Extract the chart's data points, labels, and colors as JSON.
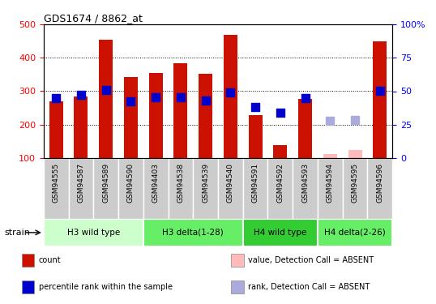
{
  "title": "GDS1674 / 8862_at",
  "samples": [
    "GSM94555",
    "GSM94587",
    "GSM94589",
    "GSM94590",
    "GSM94403",
    "GSM94538",
    "GSM94539",
    "GSM94540",
    "GSM94591",
    "GSM94592",
    "GSM94593",
    "GSM94594",
    "GSM94595",
    "GSM94596"
  ],
  "bar_values": [
    270,
    285,
    455,
    343,
    355,
    383,
    352,
    468,
    228,
    140,
    278,
    null,
    null,
    448
  ],
  "bar_absent": [
    null,
    null,
    null,
    null,
    null,
    null,
    null,
    null,
    null,
    null,
    null,
    112,
    125,
    null
  ],
  "rank_values": [
    280,
    288,
    303,
    270,
    283,
    282,
    271,
    297,
    252,
    235,
    280,
    null,
    null,
    300
  ],
  "rank_absent": [
    null,
    null,
    null,
    null,
    null,
    null,
    null,
    null,
    null,
    null,
    null,
    212,
    213,
    null
  ],
  "ylim": [
    100,
    500
  ],
  "yticks": [
    100,
    200,
    300,
    400,
    500
  ],
  "right_yticks": [
    0,
    25,
    50,
    75,
    100
  ],
  "right_ylim": [
    0,
    100
  ],
  "groups": [
    {
      "label": "H3 wild type",
      "start": 0,
      "end": 3,
      "color": "#ccffcc"
    },
    {
      "label": "H3 delta(1-28)",
      "start": 4,
      "end": 7,
      "color": "#66ee66"
    },
    {
      "label": "H4 wild type",
      "start": 8,
      "end": 10,
      "color": "#33cc33"
    },
    {
      "label": "H4 delta(2-26)",
      "start": 11,
      "end": 13,
      "color": "#66ee66"
    }
  ],
  "bar_color": "#cc1100",
  "bar_absent_color": "#ffbbbb",
  "rank_color": "#0000cc",
  "rank_absent_color": "#aaaadd",
  "plot_bg": "#ffffff",
  "xtick_bg": "#cccccc",
  "legend_items": [
    {
      "label": "count",
      "color": "#cc1100"
    },
    {
      "label": "percentile rank within the sample",
      "color": "#0000cc"
    },
    {
      "label": "value, Detection Call = ABSENT",
      "color": "#ffbbbb"
    },
    {
      "label": "rank, Detection Call = ABSENT",
      "color": "#aaaadd"
    }
  ],
  "bar_width": 0.55,
  "rank_marker_size": 45,
  "ybase": 100
}
